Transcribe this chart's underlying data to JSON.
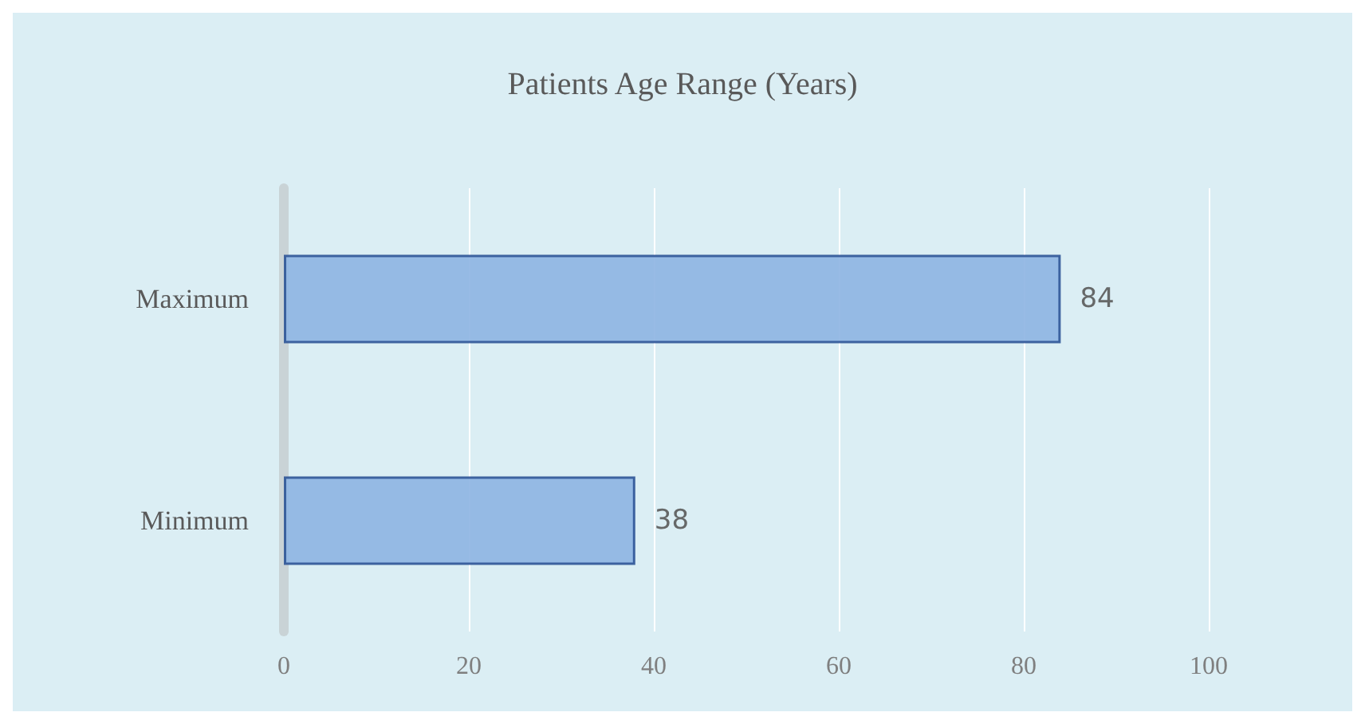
{
  "chart_data": {
    "type": "bar",
    "orientation": "horizontal",
    "title": "Patients Age Range (Years)",
    "categories": [
      "Maximum",
      "Minimum"
    ],
    "values": [
      84,
      38
    ],
    "color": "#8db4e2",
    "xlim": [
      0,
      100
    ],
    "xticks": [
      0,
      20,
      40,
      60,
      80,
      100
    ],
    "grid": "x",
    "data_labels": true
  }
}
